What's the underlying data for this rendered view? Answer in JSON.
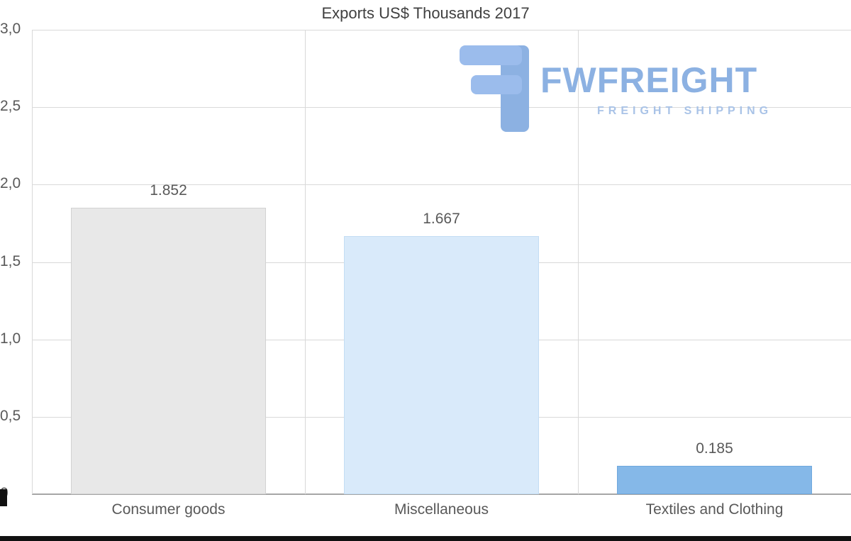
{
  "title": "Exports US$ Thousands 2017",
  "logo": {
    "name": "FWFREIGHT",
    "tagline": "FREIGHT SHIPPING",
    "color": "#8cb1e2"
  },
  "chart_data": {
    "type": "bar",
    "title": "Exports US$ Thousands 2017",
    "categories": [
      "Consumer goods",
      "Miscellaneous",
      "Textiles and Clothing"
    ],
    "values": [
      1.852,
      1.667,
      0.185
    ],
    "value_labels": [
      "1.852",
      "1.667",
      "0.185"
    ],
    "xlabel": "",
    "ylabel": "",
    "ylim": [
      0,
      3
    ],
    "yticks": [
      3.0,
      2.5,
      2.0,
      1.5,
      1.0,
      0.5,
      0
    ],
    "ytick_labels": [
      "3,0",
      "2,5",
      "2,0",
      "1,5",
      "1,0",
      "0,5",
      "0"
    ],
    "grid": true,
    "legend": false,
    "bar_colors": [
      "#e8e8e8",
      "#d9eafa",
      "#85b8e8"
    ],
    "bar_border_colors": [
      "#d2d2d2",
      "#c3ddf4",
      "#6fa8dd"
    ]
  }
}
